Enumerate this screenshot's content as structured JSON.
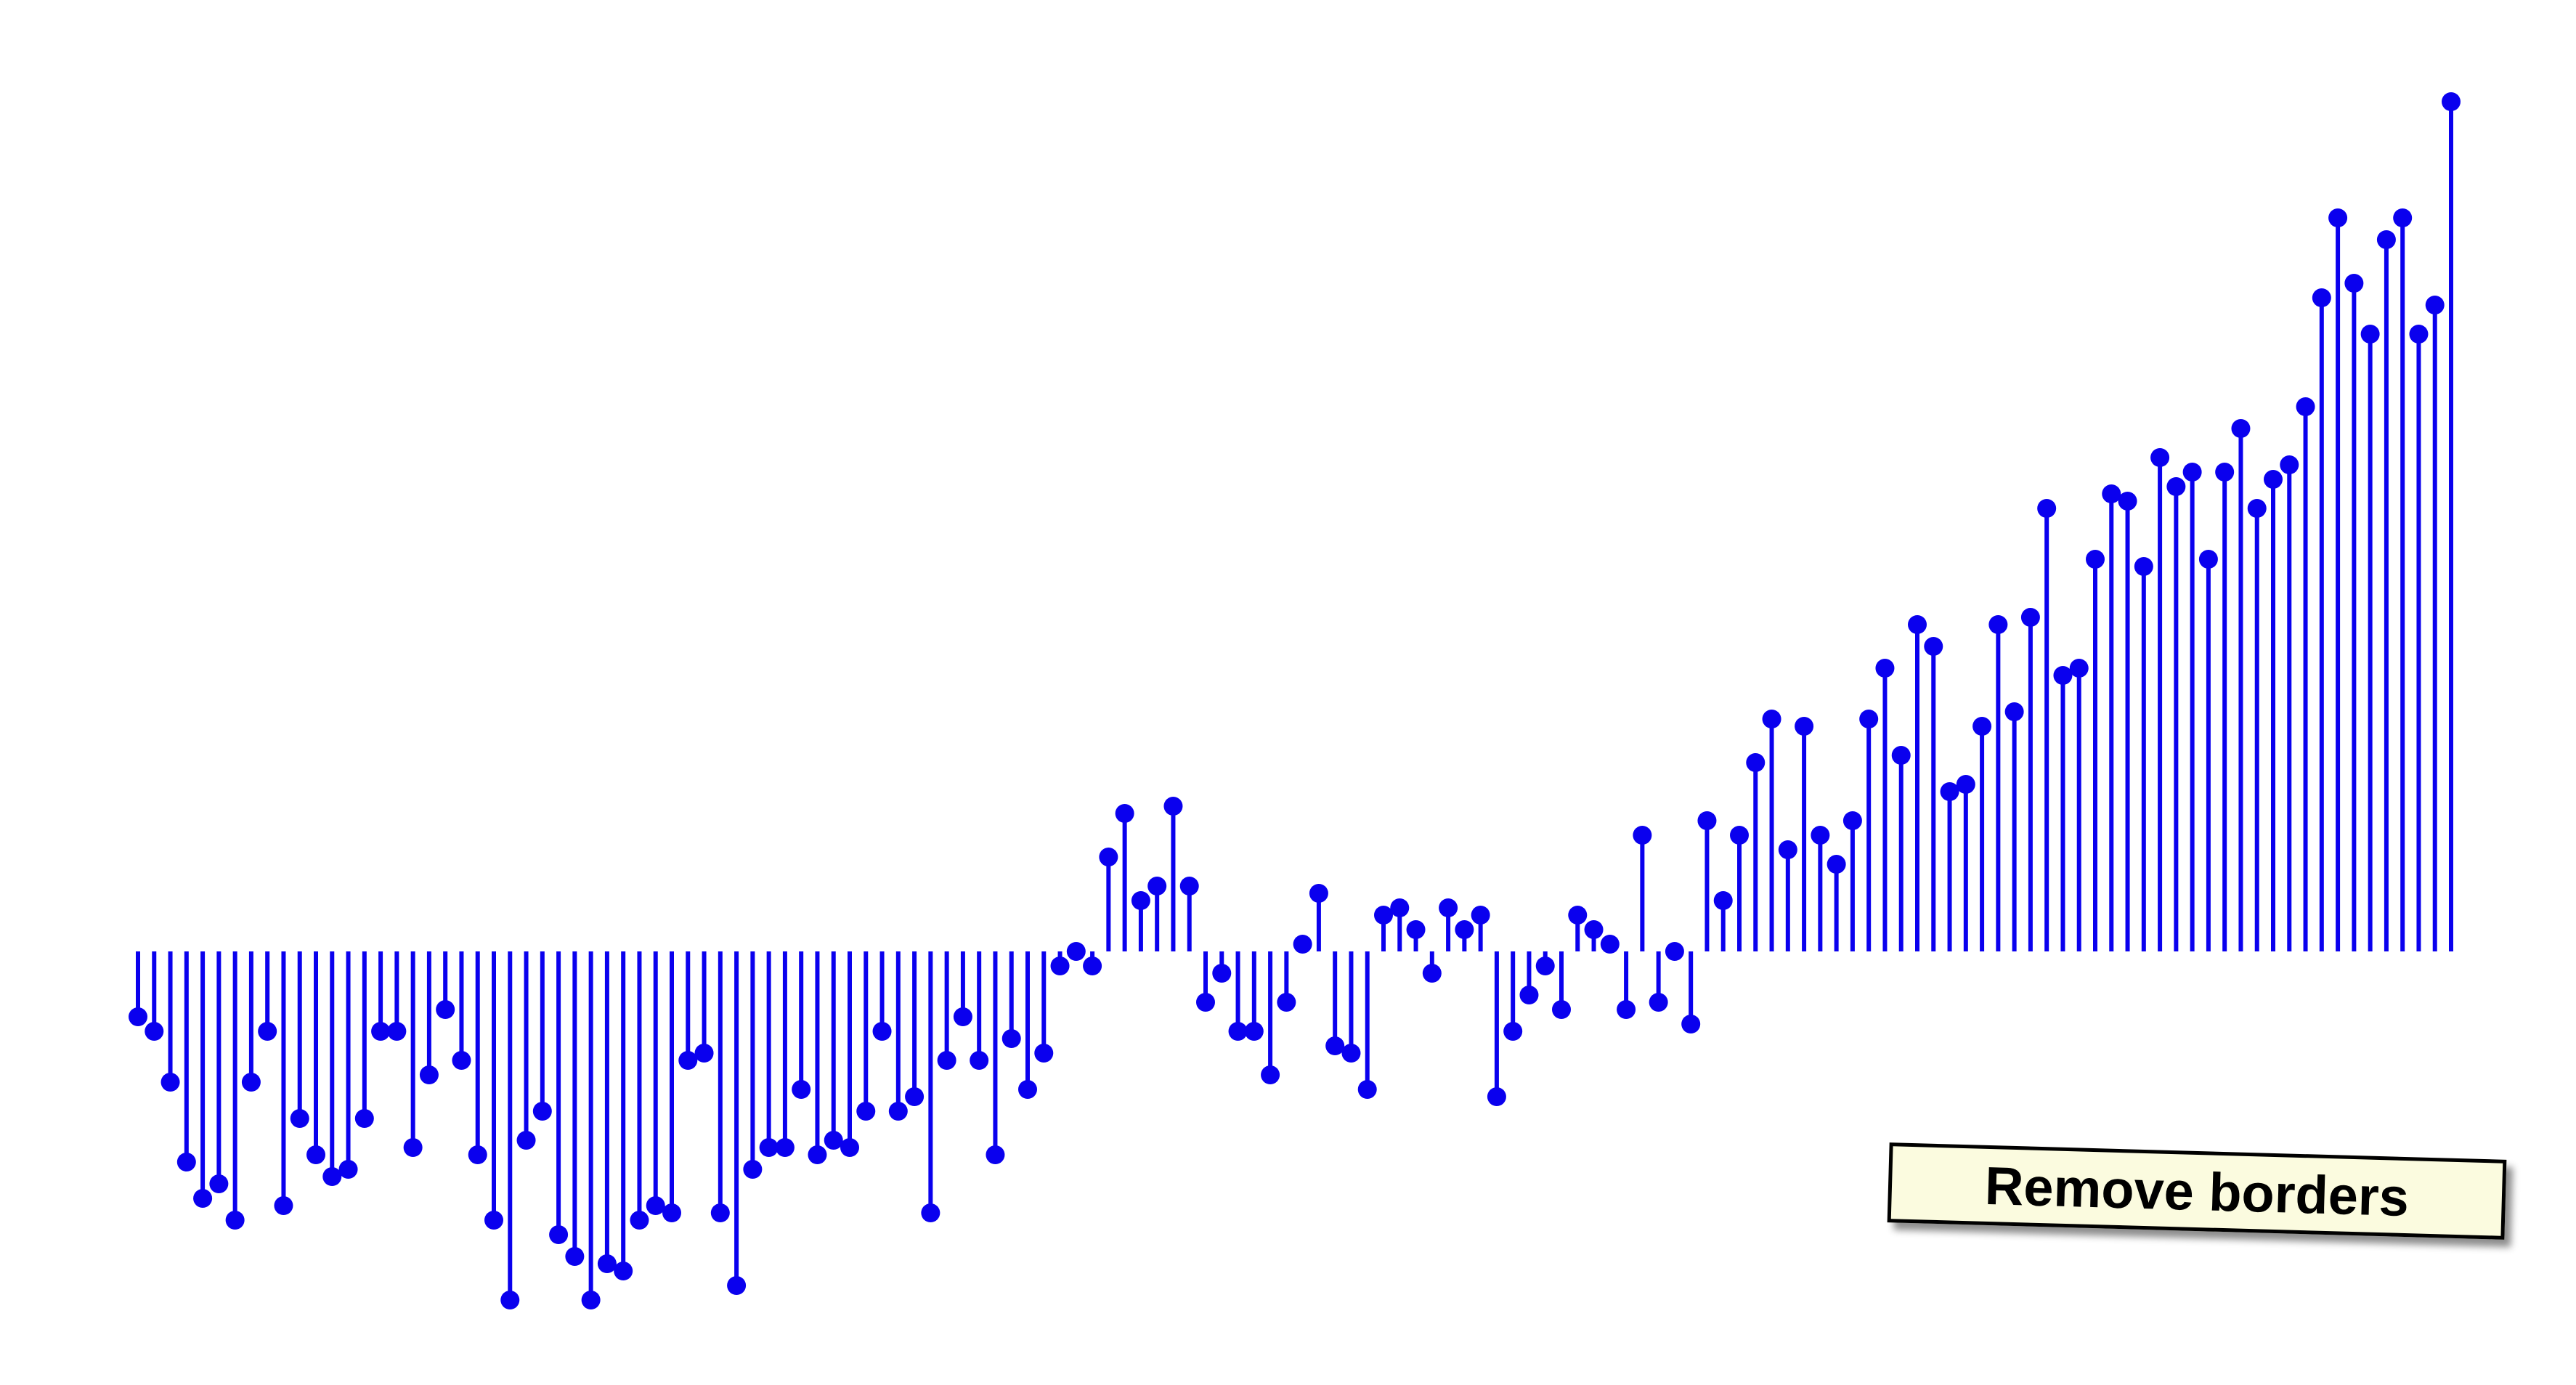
{
  "chart_data": {
    "type": "stem",
    "title": "",
    "xlabel": "",
    "ylabel": "",
    "grid": false,
    "axes_visible": false,
    "series": [
      {
        "color": "#0a00ee",
        "values": [
          -0.09,
          -0.11,
          -0.18,
          -0.29,
          -0.34,
          -0.32,
          -0.37,
          -0.18,
          -0.11,
          -0.35,
          -0.23,
          -0.28,
          -0.31,
          -0.3,
          -0.23,
          -0.11,
          -0.11,
          -0.27,
          -0.17,
          -0.08,
          -0.15,
          -0.28,
          -0.37,
          -0.48,
          -0.26,
          -0.22,
          -0.39,
          -0.42,
          -0.48,
          -0.43,
          -0.44,
          -0.37,
          -0.35,
          -0.36,
          -0.15,
          -0.14,
          -0.36,
          -0.46,
          -0.3,
          -0.27,
          -0.27,
          -0.19,
          -0.28,
          -0.26,
          -0.27,
          -0.22,
          -0.11,
          -0.22,
          -0.2,
          -0.36,
          -0.15,
          -0.09,
          -0.15,
          -0.28,
          -0.12,
          -0.19,
          -0.14,
          -0.02,
          0.0,
          -0.02,
          0.13,
          0.19,
          0.07,
          0.09,
          0.2,
          0.09,
          -0.07,
          -0.03,
          -0.11,
          -0.11,
          -0.17,
          -0.07,
          0.01,
          0.08,
          -0.13,
          -0.14,
          -0.19,
          0.05,
          0.06,
          0.03,
          -0.03,
          0.06,
          0.03,
          0.05,
          -0.2,
          -0.11,
          -0.06,
          -0.02,
          -0.08,
          0.05,
          0.03,
          0.01,
          -0.08,
          0.16,
          -0.07,
          0.0,
          -0.1,
          0.18,
          0.07,
          0.16,
          0.26,
          0.32,
          0.14,
          0.31,
          0.16,
          0.12,
          0.18,
          0.32,
          0.39,
          0.27,
          0.45,
          0.42,
          0.22,
          0.23,
          0.31,
          0.45,
          0.33,
          0.46,
          0.61,
          0.38,
          0.39,
          0.54,
          0.63,
          0.62,
          0.53,
          0.68,
          0.64,
          0.66,
          0.54,
          0.66,
          0.72,
          0.61,
          0.65,
          0.67,
          0.75,
          0.9,
          1.01,
          0.92,
          0.85,
          0.98,
          1.01,
          0.85,
          0.89,
          1.17
        ]
      }
    ],
    "ylim": [
      -0.52,
      1.22
    ]
  },
  "annotation": {
    "label": "Remove borders"
  }
}
